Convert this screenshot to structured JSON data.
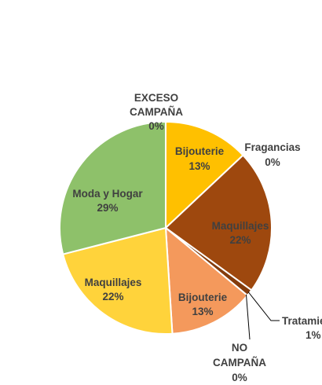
{
  "chart_data": {
    "type": "pie",
    "title": "",
    "slices": [
      {
        "label": "Bijouterie",
        "pct": "13%",
        "value": 13,
        "color": "#FFC000"
      },
      {
        "label": "Fragancias",
        "pct": "0%",
        "value": 0,
        "color": "#ED7D31"
      },
      {
        "label": "Maquillajes",
        "pct": "22%",
        "value": 22,
        "color": "#9E480E"
      },
      {
        "label": "Tratamientos",
        "pct": "1%",
        "value": 1,
        "color": "#843C0C"
      },
      {
        "label": "NO CAMPAÑA",
        "pct": "0%",
        "value": 0,
        "color": "#C55A11"
      },
      {
        "label": "Bijouterie",
        "pct": "13%",
        "value": 13,
        "color": "#F4995C"
      },
      {
        "label": "Maquillajes",
        "pct": "22%",
        "value": 22,
        "color": "#FFD33B"
      },
      {
        "label": "Moda y Hogar",
        "pct": "29%",
        "value": 29,
        "color": "#8EC16A"
      },
      {
        "label": "EXCESO CAMPAÑA",
        "pct": "0%",
        "value": 0,
        "color": "#70AD47"
      }
    ]
  }
}
